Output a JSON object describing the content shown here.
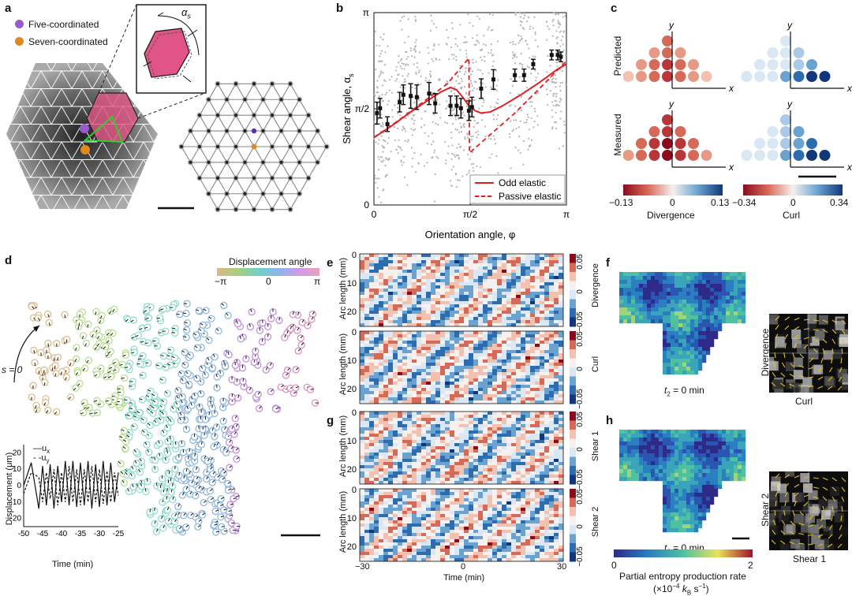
{
  "panels": {
    "a": {
      "label": "a",
      "legend": [
        {
          "name": "Five-coordinated",
          "color": "#9b59d0"
        },
        {
          "name": "Seven-coordinated",
          "color": "#e08a1e"
        }
      ],
      "inset_symbol": "α",
      "inset_subscript": "s"
    },
    "b": {
      "label": "b",
      "ylabel": "Shear angle, α",
      "ylabel_sub": "s",
      "xlabel": "Orientation angle, φ",
      "yticks": [
        "π",
        "π/2",
        "0"
      ],
      "xticks": [
        "0",
        "π/2",
        "π"
      ],
      "legend": [
        {
          "name": "Odd elastic",
          "style": "solid",
          "color": "#e02020"
        },
        {
          "name": "Passive elastic",
          "style": "dashed",
          "color": "#e02020"
        }
      ]
    },
    "c": {
      "label": "c",
      "row_labels": [
        "Predicted",
        "Measured"
      ],
      "axis_y": "y",
      "axis_x": "x",
      "colorbars": [
        {
          "min": "−0.13",
          "mid": "0",
          "max": "0.13",
          "title": "Divergence"
        },
        {
          "min": "−0.34",
          "mid": "0",
          "max": "0.34",
          "title": "Curl"
        }
      ]
    },
    "d": {
      "label": "d",
      "colorbar_title": "Displacement angle",
      "colorbar_ticks": [
        "−π",
        "0",
        "π"
      ],
      "s_label": "s = 0",
      "inset": {
        "ylabel": "Displacement (μm)",
        "xlabel": "Time (min)",
        "yticks": [
          "20",
          "10",
          "0",
          "-10",
          "-20"
        ],
        "xticks": [
          "-50",
          "-45",
          "-40",
          "-35",
          "-30",
          "-25"
        ],
        "legend": [
          "—u",
          "- -u"
        ],
        "legend_subs": [
          "x",
          "y"
        ]
      }
    },
    "e": {
      "label": "e",
      "ylabel": "Arc length (mm)",
      "yticks": [
        "0",
        "10",
        "20"
      ],
      "cb_ticks": [
        "0.05",
        "0",
        "−0.05"
      ],
      "titles": [
        "Divergence",
        "Curl"
      ]
    },
    "g": {
      "label": "g",
      "ylabel": "Arc length (mm)",
      "yticks": [
        "0",
        "10",
        "20"
      ],
      "cb_ticks": [
        "0.05",
        "0",
        "−0.05"
      ],
      "titles": [
        "Shear 1",
        "Shear 2"
      ],
      "xlabel": "Time (min)",
      "xticks": [
        "−30",
        "0",
        "30"
      ]
    },
    "f": {
      "label": "f",
      "time_label": "t",
      "time_sub": "2",
      "time_value": " = 0 min",
      "inset_ylabel": "Divergence",
      "inset_xlabel": "Curl"
    },
    "h": {
      "label": "h",
      "time_label": "t",
      "time_sub": "2",
      "time_value": " = 0 min",
      "inset_ylabel": "Shear 2",
      "inset_xlabel": "Shear 1",
      "colorbar_min": "0",
      "colorbar_max": "2",
      "colorbar_title": "Partial entropy production rate",
      "colorbar_unit": "(×10",
      "colorbar_unit_exp": "−4",
      "colorbar_unit_rest": " k",
      "colorbar_unit_sub": "B",
      "colorbar_unit_end": " s",
      "colorbar_unit_end_exp": "−1",
      "colorbar_unit_close": ")"
    }
  },
  "chart_data": [
    {
      "type": "scatter",
      "title": "",
      "xlabel": "Orientation angle, φ",
      "ylabel": "Shear angle, αs",
      "xlim": [
        0,
        3.1416
      ],
      "ylim": [
        0,
        3.1416
      ],
      "series": [
        {
          "name": "Odd elastic",
          "kind": "line",
          "x": [
            0.0,
            0.3,
            0.6,
            0.9,
            1.1,
            1.25,
            1.35,
            1.45,
            1.55,
            1.65,
            1.75,
            1.9,
            2.1,
            2.4,
            2.7,
            3.0,
            3.14
          ],
          "y": [
            1.1,
            1.3,
            1.52,
            1.72,
            1.85,
            1.92,
            1.88,
            1.76,
            1.62,
            1.54,
            1.5,
            1.52,
            1.62,
            1.8,
            2.0,
            2.22,
            2.3
          ]
        },
        {
          "name": "Passive elastic",
          "kind": "dashed",
          "x": [
            0.0,
            0.4,
            0.8,
            1.2,
            1.55,
            1.56,
            1.9,
            2.3,
            2.7,
            3.14
          ],
          "y": [
            1.1,
            1.38,
            1.68,
            1.98,
            2.4,
            0.85,
            1.15,
            1.5,
            1.9,
            2.35
          ]
        },
        {
          "name": "binned",
          "x": [
            0.05,
            0.1,
            0.22,
            0.42,
            0.48,
            0.6,
            0.7,
            0.9,
            1.0,
            1.25,
            1.35,
            1.42,
            1.55,
            1.6,
            1.75,
            1.95,
            2.3,
            2.45,
            2.6,
            2.9,
            3.0,
            3.05
          ],
          "y": [
            1.5,
            1.58,
            1.32,
            1.68,
            1.8,
            1.78,
            1.76,
            1.82,
            1.66,
            1.62,
            1.62,
            1.58,
            1.54,
            1.6,
            1.9,
            2.05,
            2.12,
            2.12,
            2.3,
            2.45,
            2.45,
            2.42
          ],
          "err": [
            0.18,
            0.16,
            0.12,
            0.16,
            0.16,
            0.2,
            0.2,
            0.18,
            0.16,
            0.16,
            0.16,
            0.16,
            0.16,
            0.16,
            0.16,
            0.16,
            0.1,
            0.1,
            0.08,
            0.08,
            0.08,
            0.08
          ]
        }
      ]
    },
    {
      "type": "line",
      "title": "",
      "xlabel": "Time (min)",
      "ylabel": "Displacement (μm)",
      "xlim": [
        -50,
        -25
      ],
      "ylim": [
        -25,
        25
      ],
      "series": [
        {
          "name": "ux",
          "x": [
            -50,
            -48,
            -46,
            -45,
            -44,
            -43,
            -42,
            -41,
            -40,
            -39,
            -38,
            -37,
            -36,
            -35,
            -34,
            -33,
            -32,
            -31,
            -30,
            -29,
            -28,
            -27,
            -26,
            -25
          ],
          "y": [
            0,
            14,
            -14,
            12,
            -12,
            13,
            -14,
            12,
            -10,
            15,
            -12,
            15,
            -13,
            14,
            -12,
            15,
            -14,
            13,
            -13,
            15,
            -12,
            14,
            -10,
            8
          ]
        },
        {
          "name": "uy",
          "x": [
            -50,
            -48,
            -46,
            -45,
            -44,
            -43,
            -42,
            -41,
            -40,
            -39,
            -38,
            -37,
            -36,
            -35,
            -34,
            -33,
            -32,
            -31,
            -30,
            -29,
            -28,
            -27,
            -26,
            -25
          ],
          "y": [
            -5,
            8,
            5,
            -10,
            8,
            -8,
            10,
            -12,
            8,
            -10,
            12,
            -10,
            10,
            -12,
            10,
            -10,
            12,
            -10,
            10,
            -11,
            9,
            -10,
            8,
            -6
          ]
        }
      ]
    }
  ]
}
